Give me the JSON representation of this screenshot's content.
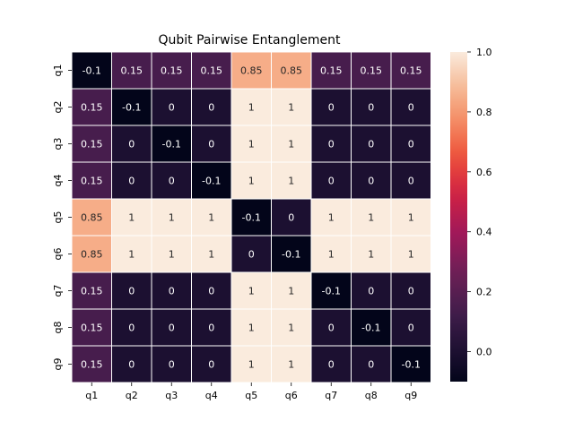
{
  "chart_data": {
    "type": "heatmap",
    "title": "Qubit Pairwise Entanglement",
    "xlabel": "",
    "ylabel": "",
    "x_categories": [
      "q1",
      "q2",
      "q3",
      "q4",
      "q5",
      "q6",
      "q7",
      "q8",
      "q9"
    ],
    "y_categories": [
      "q1",
      "q2",
      "q3",
      "q4",
      "q5",
      "q6",
      "q7",
      "q8",
      "q9"
    ],
    "values": [
      [
        -0.1,
        0.15,
        0.15,
        0.15,
        0.85,
        0.85,
        0.15,
        0.15,
        0.15
      ],
      [
        0.15,
        -0.1,
        0,
        0,
        1,
        1,
        0,
        0,
        0
      ],
      [
        0.15,
        0,
        -0.1,
        0,
        1,
        1,
        0,
        0,
        0
      ],
      [
        0.15,
        0,
        0,
        -0.1,
        1,
        1,
        0,
        0,
        0
      ],
      [
        0.85,
        1,
        1,
        1,
        -0.1,
        0,
        1,
        1,
        1
      ],
      [
        0.85,
        1,
        1,
        1,
        0,
        -0.1,
        1,
        1,
        1
      ],
      [
        0.15,
        0,
        0,
        0,
        1,
        1,
        -0.1,
        0,
        0
      ],
      [
        0.15,
        0,
        0,
        0,
        1,
        1,
        0,
        -0.1,
        0
      ],
      [
        0.15,
        0,
        0,
        0,
        1,
        1,
        0,
        0,
        -0.1
      ]
    ],
    "annotations": true,
    "colormap": "rocket",
    "vmin": -0.1,
    "vmax": 1.0,
    "colorbar_ticks": [
      0.0,
      0.2,
      0.4,
      0.6,
      0.8,
      1.0
    ],
    "colorbar_tick_labels": [
      "0.0",
      "0.2",
      "0.4",
      "0.6",
      "0.8",
      "1.0"
    ],
    "grid_line_color": "#ffffff",
    "grid": false,
    "legend": "colorbar-right"
  }
}
